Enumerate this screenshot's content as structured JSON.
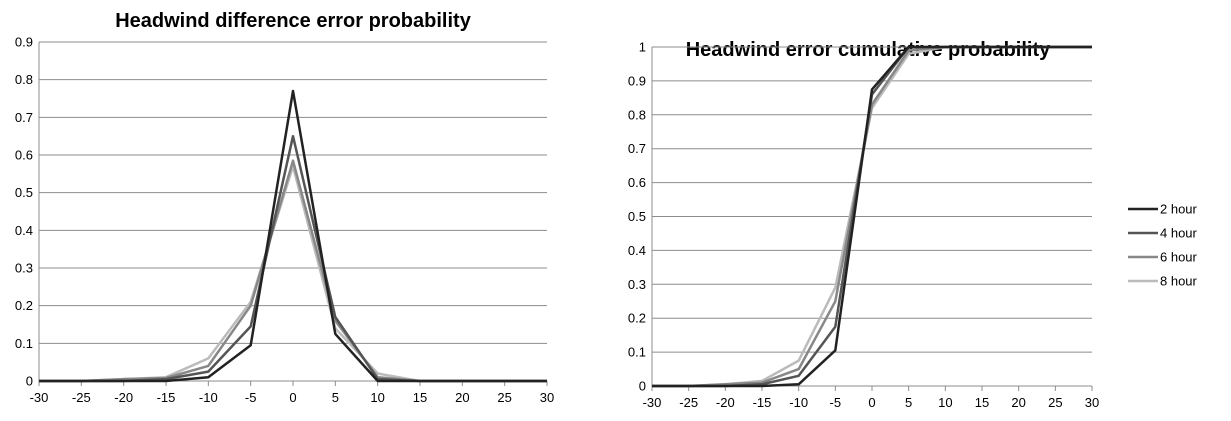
{
  "chart_data": [
    {
      "type": "line",
      "title": "Headwind difference error probability",
      "xlabel": "",
      "ylabel": "",
      "x": [
        -30,
        -25,
        -20,
        -15,
        -10,
        -5,
        0,
        5,
        10,
        15,
        20,
        25,
        30
      ],
      "xticks": [
        "-30",
        "-25",
        "-20",
        "-15",
        "-10",
        "-5",
        "0",
        "5",
        "10",
        "15",
        "20",
        "25",
        "30"
      ],
      "ylim": [
        0,
        0.9
      ],
      "yticks": [
        "0",
        "0.1",
        "0.2",
        "0.3",
        "0.4",
        "0.5",
        "0.6",
        "0.7",
        "0.8",
        "0.9"
      ],
      "grid": true,
      "series": [
        {
          "name": "2 hour",
          "color": "#222222",
          "values": [
            0,
            0,
            0,
            0,
            0.01,
            0.095,
            0.77,
            0.125,
            0,
            0,
            0,
            0,
            0
          ]
        },
        {
          "name": "4 hour",
          "color": "#555555",
          "values": [
            0,
            0,
            0,
            0.005,
            0.025,
            0.145,
            0.65,
            0.17,
            0.005,
            0,
            0,
            0,
            0
          ]
        },
        {
          "name": "6 hour",
          "color": "#888888",
          "values": [
            0,
            0,
            0.005,
            0.008,
            0.04,
            0.2,
            0.585,
            0.16,
            0.01,
            0,
            0,
            0,
            0
          ]
        },
        {
          "name": "8 hour",
          "color": "#bbbbbb",
          "values": [
            0,
            0,
            0.005,
            0.01,
            0.06,
            0.21,
            0.57,
            0.14,
            0.02,
            0,
            0,
            0,
            0
          ]
        }
      ]
    },
    {
      "type": "line",
      "title": "Headwind error cumulative probability",
      "xlabel": "",
      "ylabel": "",
      "x": [
        -30,
        -25,
        -20,
        -15,
        -10,
        -5,
        0,
        5,
        10,
        15,
        20,
        25,
        30
      ],
      "xticks": [
        "-30",
        "-25",
        "-20",
        "-15",
        "-10",
        "-5",
        "0",
        "5",
        "10",
        "15",
        "20",
        "25",
        "30"
      ],
      "ylim": [
        0,
        1
      ],
      "yticks": [
        "0",
        "0.1",
        "0.2",
        "0.3",
        "0.4",
        "0.5",
        "0.6",
        "0.7",
        "0.8",
        "0.9",
        "1"
      ],
      "grid": true,
      "legend": "right",
      "series": [
        {
          "name": "2 hour",
          "color": "#222222",
          "values": [
            0,
            0,
            0,
            0,
            0.005,
            0.105,
            0.875,
            1.0,
            1.0,
            1.0,
            1.0,
            1.0,
            1.0
          ]
        },
        {
          "name": "4 hour",
          "color": "#555555",
          "values": [
            0,
            0,
            0,
            0.005,
            0.03,
            0.175,
            0.86,
            1.0,
            1.0,
            1.0,
            1.0,
            1.0,
            1.0
          ]
        },
        {
          "name": "6 hour",
          "color": "#888888",
          "values": [
            0,
            0,
            0.005,
            0.01,
            0.05,
            0.25,
            0.83,
            0.99,
            1.0,
            1.0,
            1.0,
            1.0,
            1.0
          ]
        },
        {
          "name": "8 hour",
          "color": "#bbbbbb",
          "values": [
            0,
            0,
            0.005,
            0.015,
            0.075,
            0.29,
            0.82,
            0.98,
            1.0,
            1.0,
            1.0,
            1.0,
            1.0
          ]
        }
      ]
    }
  ]
}
